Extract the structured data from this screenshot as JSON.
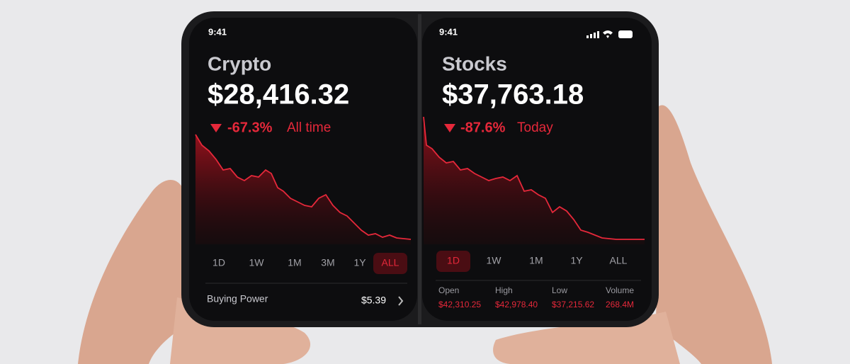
{
  "left": {
    "time": "9:41",
    "title": "Crypto",
    "price": "$28,416.32",
    "change": "-67.3%",
    "period": "All time",
    "ranges": [
      "1D",
      "1W",
      "1M",
      "3M",
      "1Y",
      "ALL"
    ],
    "selected": 5,
    "buying_power": {
      "label": "Buying Power",
      "value": "$5.39"
    }
  },
  "right": {
    "time": "9:41",
    "title": "Stocks",
    "price": "$37,763.18",
    "change": "-87.6%",
    "period": "Today",
    "ranges": [
      "1D",
      "1W",
      "1M",
      "1Y",
      "ALL"
    ],
    "selected": 0,
    "stats": [
      {
        "label": "Open",
        "value": "$42,310.25"
      },
      {
        "label": "High",
        "value": "$42,978.40"
      },
      {
        "label": "Low",
        "value": "$37,215.62"
      },
      {
        "label": "Volume",
        "value": "268.4M"
      }
    ]
  }
}
